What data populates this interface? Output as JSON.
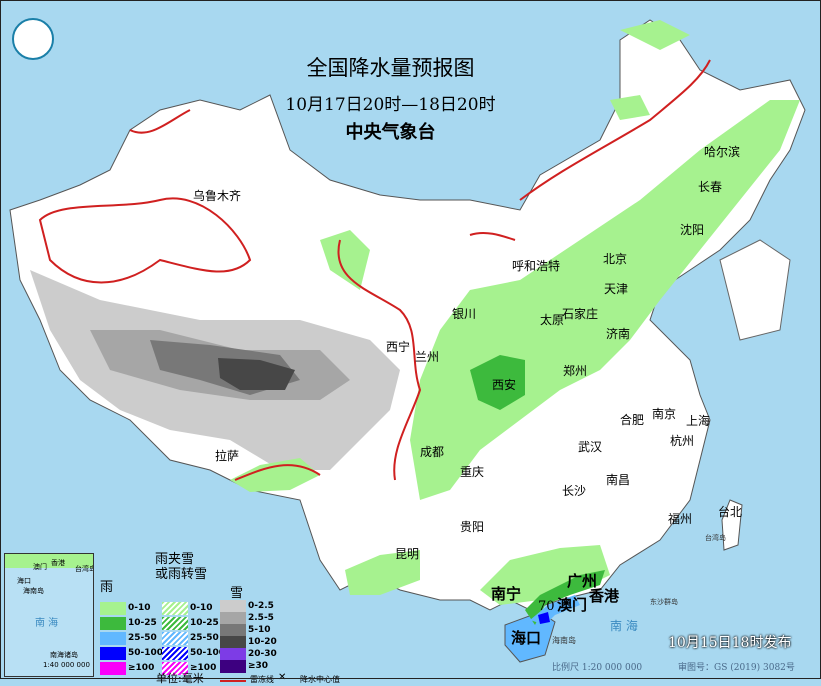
{
  "header": {
    "title": "全国降水量预报图",
    "period": "10月17日20时—18日20时",
    "issuer": "中央气象台"
  },
  "colors": {
    "sea": "#a8d8f0",
    "land": "#ffffff",
    "rain_0_10": "#a6f28f",
    "rain_10_25": "#3dba3d",
    "rain_25_50": "#61b8ff",
    "rain_50_100": "#0000fe",
    "rain_100": "#fa00fa",
    "snow_0_2_5": "#cccccc",
    "snow_2_5_5": "#a6a6a6",
    "snow_5_10": "#787878",
    "snow_10_20": "#474747",
    "snow_20_30": "#7d3ce6",
    "snow_30": "#3d0080",
    "freezing_line": "#d02020"
  },
  "cities": [
    {
      "name": "乌鲁木齐"
    },
    {
      "name": "呼和浩特"
    },
    {
      "name": "北京"
    },
    {
      "name": "天津"
    },
    {
      "name": "石家庄"
    },
    {
      "name": "太原"
    },
    {
      "name": "济南"
    },
    {
      "name": "银川"
    },
    {
      "name": "西宁"
    },
    {
      "name": "兰州"
    },
    {
      "name": "西安"
    },
    {
      "name": "郑州"
    },
    {
      "name": "成都"
    },
    {
      "name": "重庆"
    },
    {
      "name": "武汉"
    },
    {
      "name": "合肥"
    },
    {
      "name": "南京"
    },
    {
      "name": "上海"
    },
    {
      "name": "杭州"
    },
    {
      "name": "长沙"
    },
    {
      "name": "南昌"
    },
    {
      "name": "福州"
    },
    {
      "name": "台北"
    },
    {
      "name": "贵阳"
    },
    {
      "name": "昆明"
    },
    {
      "name": "南宁"
    },
    {
      "name": "广州"
    },
    {
      "name": "香港"
    },
    {
      "name": "澳门"
    },
    {
      "name": "海口"
    },
    {
      "name": "拉萨"
    },
    {
      "name": "哈尔滨"
    },
    {
      "name": "长春"
    },
    {
      "name": "沈阳"
    }
  ],
  "sea_labels": {
    "south_sea": "南 海",
    "hainan_island": "海南岛",
    "dongsha": "东沙群岛",
    "taiwan_island": "台湾岛"
  },
  "precip_center": {
    "value": "70"
  },
  "legend": {
    "rain_title": "雨",
    "mix_title": "雨夹雪\n或雨转雪",
    "snow_title": "雪",
    "rain": [
      "0-10",
      "10-25",
      "25-50",
      "50-100",
      "≥100"
    ],
    "mix": [
      "0-10",
      "10-25",
      "25-50",
      "50-100",
      "≥100"
    ],
    "snow": [
      "0-2.5",
      "2.5-5",
      "5-10",
      "10-20",
      "20-30",
      "≥30"
    ],
    "unit": "单位:毫米",
    "freezing_line": "雷冻线",
    "center_marker": "✕",
    "center_label": "降水中心值"
  },
  "inset": {
    "south_sea": "南 海",
    "haikou": "海口",
    "hainan": "海南岛",
    "macau": "澳门",
    "hongkong": "香港",
    "taiwan": "台湾岛",
    "islands": "南海诸岛",
    "scale": "1:40 000 000"
  },
  "footer": {
    "published": "10月15日18时发布",
    "scale": "比例尺 1:20 000 000",
    "approval": "审图号：GS (2019) 3082号"
  }
}
